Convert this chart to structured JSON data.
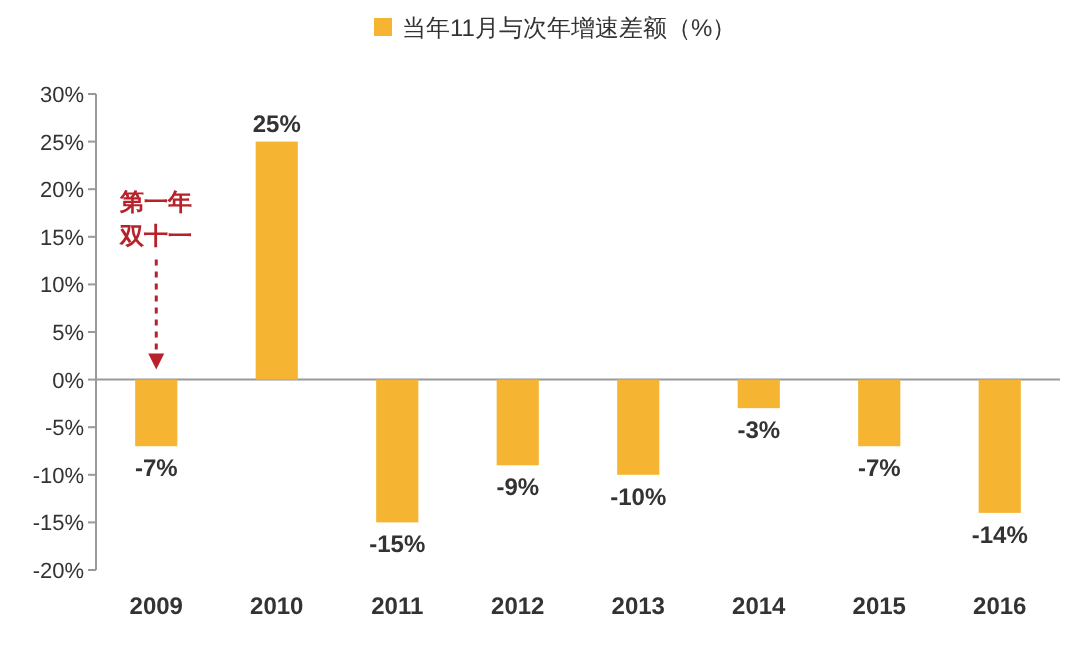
{
  "chart_data": {
    "type": "bar",
    "categories": [
      "2009",
      "2010",
      "2011",
      "2012",
      "2013",
      "2014",
      "2015",
      "2016"
    ],
    "series": [
      {
        "name": "当年11月与次年增速差额（%）",
        "color": "#f5b533",
        "values": [
          -7,
          25,
          -15,
          -9,
          -10,
          -3,
          -7,
          -14
        ],
        "value_labels": [
          "-7%",
          "25%",
          "-15%",
          "-9%",
          "-10%",
          "-3%",
          "-7%",
          "-14%"
        ]
      }
    ],
    "ylim": [
      -20,
      30
    ],
    "yticks": [
      {
        "value": -20,
        "label": "-20%"
      },
      {
        "value": -15,
        "label": "-15%"
      },
      {
        "value": -10,
        "label": "-10%"
      },
      {
        "value": -5,
        "label": "-5%"
      },
      {
        "value": 0,
        "label": "0%"
      },
      {
        "value": 5,
        "label": "5%"
      },
      {
        "value": 10,
        "label": "10%"
      },
      {
        "value": 15,
        "label": "15%"
      },
      {
        "value": 20,
        "label": "20%"
      },
      {
        "value": 25,
        "label": "25%"
      },
      {
        "value": 30,
        "label": "30%"
      }
    ],
    "annotations": [
      "第一年",
      "双十一"
    ],
    "legend": "top"
  }
}
